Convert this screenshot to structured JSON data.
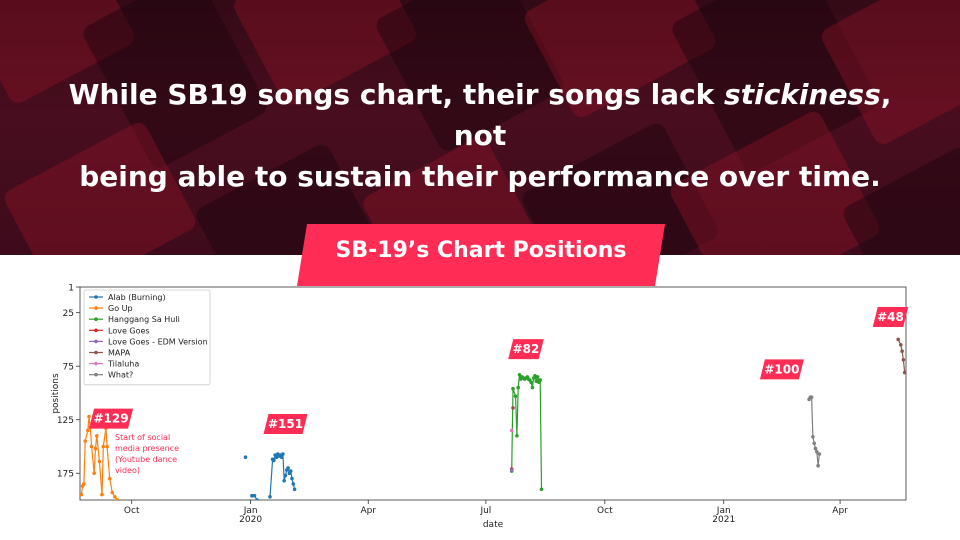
{
  "headline": {
    "line1_a": "While SB19 songs chart, their songs lack ",
    "line1_em": "stickiness",
    "line1_b": ", not",
    "line2": "being able to sustain their performance over time."
  },
  "banner": {
    "title": "SB-19’s Chart Positions"
  },
  "colors": {
    "accent": "#ff2d55",
    "hero_dark": "#3a0d1a"
  },
  "chart_data": {
    "type": "line",
    "xlabel": "date",
    "ylabel": "positions",
    "y_inverted": true,
    "ylim": [
      1,
      200
    ],
    "y_ticks": [
      1,
      25,
      75,
      125,
      175
    ],
    "xlim": [
      "2019-08-22",
      "2021-05-22"
    ],
    "x_ticks": [
      {
        "date": "2019-10-01",
        "label": "Oct",
        "sub": ""
      },
      {
        "date": "2020-01-01",
        "label": "Jan",
        "sub": "2020"
      },
      {
        "date": "2020-04-01",
        "label": "Apr",
        "sub": ""
      },
      {
        "date": "2020-07-01",
        "label": "Jul",
        "sub": ""
      },
      {
        "date": "2020-10-01",
        "label": "Oct",
        "sub": ""
      },
      {
        "date": "2021-01-01",
        "label": "Jan",
        "sub": "2021"
      },
      {
        "date": "2021-04-01",
        "label": "Apr",
        "sub": ""
      }
    ],
    "legend_position": "top-left",
    "series": [
      {
        "name": "Alab (Burning)",
        "color": "#1f77b4",
        "segments": [
          [
            [
              "2019-12-28",
              160
            ]
          ],
          [
            [
              "2020-01-02",
              196
            ],
            [
              "2020-01-04",
              196
            ],
            [
              "2020-01-06",
              200
            ]
          ],
          [
            [
              "2020-01-16",
              197
            ],
            [
              "2020-01-18",
              162
            ],
            [
              "2020-01-19",
              163
            ],
            [
              "2020-01-20",
              158
            ],
            [
              "2020-01-21",
              160
            ],
            [
              "2020-01-22",
              157
            ],
            [
              "2020-01-23",
              159
            ],
            [
              "2020-01-24",
              158
            ],
            [
              "2020-01-25",
              160
            ],
            [
              "2020-01-26",
              157
            ],
            [
              "2020-01-27",
              182
            ],
            [
              "2020-01-28",
              177
            ],
            [
              "2020-01-29",
              172
            ],
            [
              "2020-01-30",
              170
            ],
            [
              "2020-01-31",
              175
            ],
            [
              "2020-02-01",
              173
            ],
            [
              "2020-02-02",
              180
            ],
            [
              "2020-02-03",
              185
            ],
            [
              "2020-02-04",
              190
            ]
          ]
        ]
      },
      {
        "name": "Go Up",
        "color": "#ff7f0e",
        "segments": [
          [
            [
              "2019-08-23",
              195
            ],
            [
              "2019-08-24",
              187
            ],
            [
              "2019-08-25",
              185
            ],
            [
              "2019-08-26",
              145
            ],
            [
              "2019-08-28",
              135
            ],
            [
              "2019-08-29",
              122
            ],
            [
              "2019-08-30",
              132
            ],
            [
              "2019-08-31",
              150
            ],
            [
              "2019-09-02",
              175
            ],
            [
              "2019-09-03",
              152
            ],
            [
              "2019-09-04",
              140
            ],
            [
              "2019-09-06",
              164
            ],
            [
              "2019-09-08",
              195
            ],
            [
              "2019-09-09",
              150
            ],
            [
              "2019-09-11",
              133
            ],
            [
              "2019-09-12",
              150
            ],
            [
              "2019-09-14",
              180
            ],
            [
              "2019-09-16",
              193
            ],
            [
              "2019-09-18",
              197
            ],
            [
              "2019-09-20",
              200
            ]
          ]
        ]
      },
      {
        "name": "Hanggang Sa Huli",
        "color": "#2ca02c",
        "segments": [
          [
            [
              "2020-07-21",
              173
            ],
            [
              "2020-07-22",
              96
            ],
            [
              "2020-07-24",
              103
            ],
            [
              "2020-07-25",
              140
            ],
            [
              "2020-07-26",
              95
            ],
            [
              "2020-07-27",
              83
            ],
            [
              "2020-07-28",
              87
            ],
            [
              "2020-07-29",
              85
            ],
            [
              "2020-07-30",
              86
            ],
            [
              "2020-07-31",
              87
            ],
            [
              "2020-08-01",
              86
            ],
            [
              "2020-08-02",
              85
            ],
            [
              "2020-08-03",
              87
            ],
            [
              "2020-08-04",
              88
            ],
            [
              "2020-08-05",
              90
            ],
            [
              "2020-08-06",
              95
            ],
            [
              "2020-08-07",
              86
            ],
            [
              "2020-08-08",
              84
            ],
            [
              "2020-08-09",
              89
            ],
            [
              "2020-08-10",
              85
            ],
            [
              "2020-08-11",
              90
            ],
            [
              "2020-08-12",
              88
            ],
            [
              "2020-08-13",
              190
            ]
          ]
        ]
      },
      {
        "name": "Love Goes",
        "color": "#d62728",
        "segments": [
          [
            [
              "2020-07-21",
              171
            ]
          ]
        ]
      },
      {
        "name": "Love Goes - EDM Version",
        "color": "#9467bd",
        "segments": [
          [
            [
              "2020-07-21",
              172
            ]
          ]
        ]
      },
      {
        "name": "MAPA",
        "color": "#8c564b",
        "segments": [
          [
            [
              "2020-07-22",
              114
            ]
          ],
          [
            [
              "2021-05-16",
              50
            ],
            [
              "2021-05-18",
              55
            ],
            [
              "2021-05-19",
              61
            ],
            [
              "2021-05-20",
              69
            ],
            [
              "2021-05-21",
              81
            ]
          ]
        ]
      },
      {
        "name": "Tilaluha",
        "color": "#e377c2",
        "segments": [
          [
            [
              "2020-07-21",
              135
            ]
          ]
        ]
      },
      {
        "name": "What?",
        "color": "#7f7f7f",
        "segments": [
          [
            [
              "2021-03-08",
              106
            ],
            [
              "2021-03-09",
              104
            ],
            [
              "2021-03-10",
              104
            ],
            [
              "2021-03-11",
              141
            ],
            [
              "2021-03-12",
              147
            ],
            [
              "2021-03-13",
              152
            ],
            [
              "2021-03-14",
              155
            ],
            [
              "2021-03-15",
              168
            ],
            [
              "2021-03-16",
              157
            ]
          ]
        ]
      }
    ],
    "annotations": [
      {
        "text": "#129",
        "date": "2019-09-15",
        "position": 124
      },
      {
        "text": "#151",
        "date": "2020-01-28",
        "position": 129
      },
      {
        "text": "#82",
        "date": "2020-08-01",
        "position": 59
      },
      {
        "text": "#100",
        "date": "2021-02-15",
        "position": 78
      },
      {
        "text": "#48",
        "date": "2021-05-10",
        "position": 29
      }
    ],
    "note": {
      "lines": [
        "Start of social",
        "media presence",
        "(Youtube dance",
        "video)"
      ],
      "date": "2019-09-15"
    }
  }
}
